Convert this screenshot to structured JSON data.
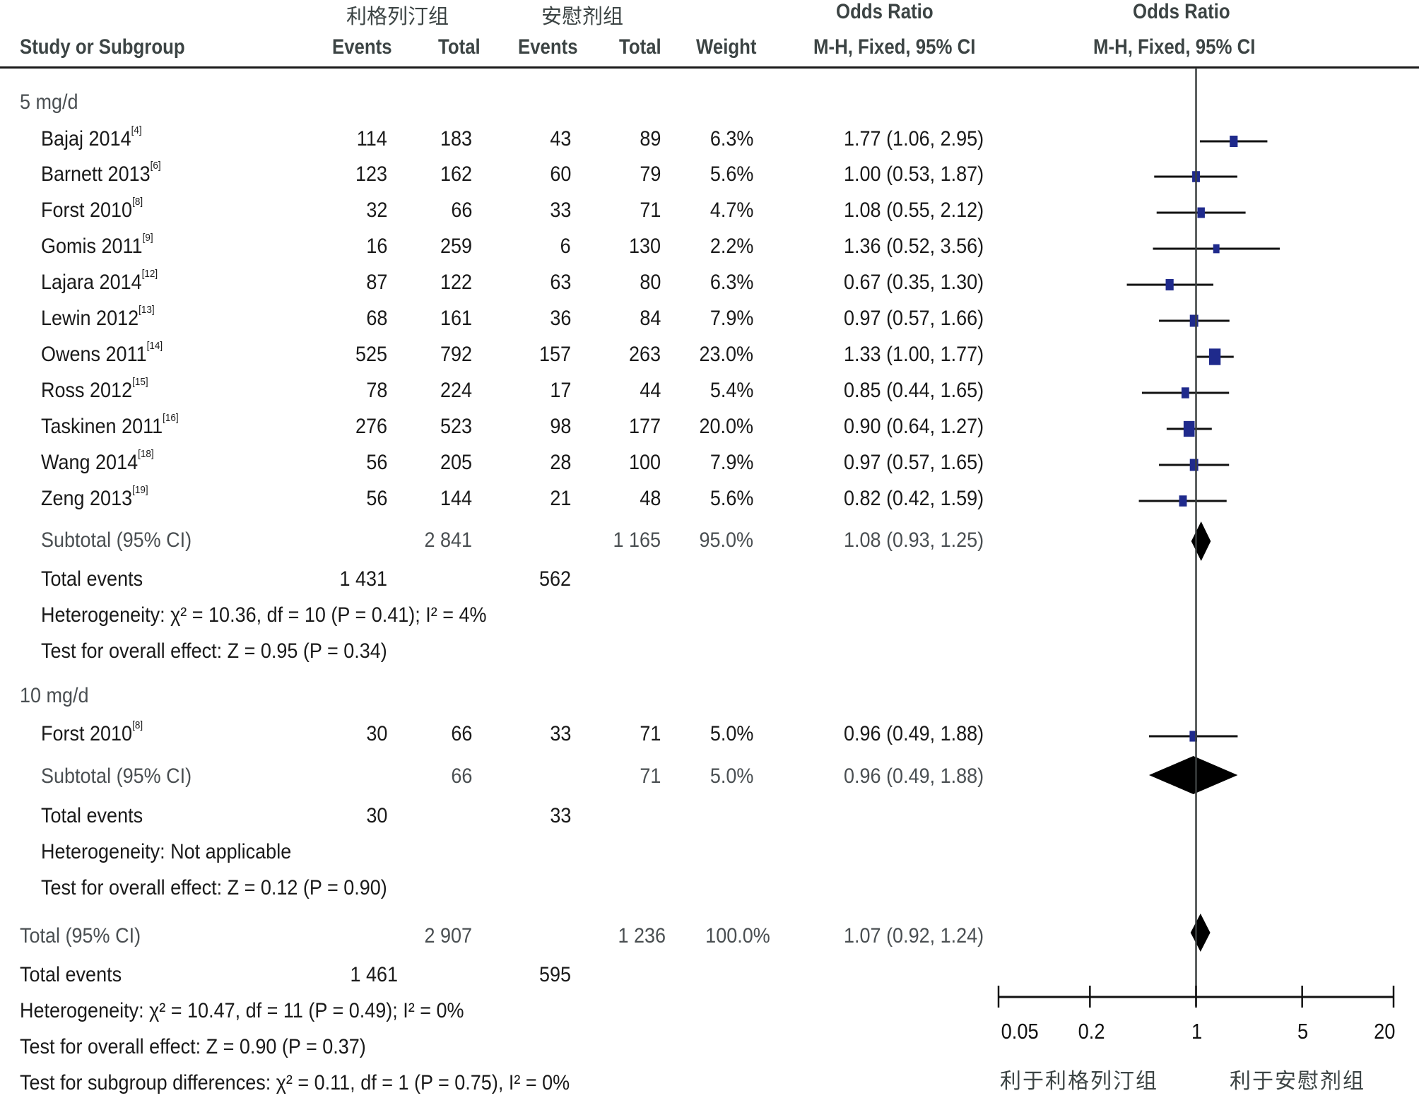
{
  "header": {
    "group1_label": "利格列汀组",
    "group2_label": "安慰剂组",
    "study_col": "Study or Subgroup",
    "events": "Events",
    "total": "Total",
    "weight": "Weight",
    "or_title": "Odds Ratio",
    "or_method": "M-H, Fixed, 95% CI"
  },
  "subgroups": [
    {
      "label": "5 mg/d",
      "studies": [
        {
          "name": "Bajaj 2014",
          "ref": "[4]",
          "e1": "114",
          "t1": "183",
          "e2": "43",
          "t2": "89",
          "weight": "6.3%",
          "ci": "1.77 (1.06, 2.95)",
          "or": 1.77,
          "lo": 1.06,
          "hi": 2.95,
          "w": 6.3
        },
        {
          "name": "Barnett 2013",
          "ref": "[6]",
          "e1": "123",
          "t1": "162",
          "e2": "60",
          "t2": "79",
          "weight": "5.6%",
          "ci": "1.00 (0.53, 1.87)",
          "or": 1.0,
          "lo": 0.53,
          "hi": 1.87,
          "w": 5.6
        },
        {
          "name": "Forst 2010",
          "ref": "[8]",
          "e1": "32",
          "t1": "66",
          "e2": "33",
          "t2": "71",
          "weight": "4.7%",
          "ci": "1.08 (0.55, 2.12)",
          "or": 1.08,
          "lo": 0.55,
          "hi": 2.12,
          "w": 4.7
        },
        {
          "name": "Gomis 2011",
          "ref": "[9]",
          "e1": "16",
          "t1": "259",
          "e2": "6",
          "t2": "130",
          "weight": "2.2%",
          "ci": "1.36 (0.52, 3.56)",
          "or": 1.36,
          "lo": 0.52,
          "hi": 3.56,
          "w": 2.2
        },
        {
          "name": "Lajara 2014",
          "ref": "[12]",
          "e1": "87",
          "t1": "122",
          "e2": "63",
          "t2": "80",
          "weight": "6.3%",
          "ci": "0.67 (0.35, 1.30)",
          "or": 0.67,
          "lo": 0.35,
          "hi": 1.3,
          "w": 6.3
        },
        {
          "name": "Lewin 2012",
          "ref": "[13]",
          "e1": "68",
          "t1": "161",
          "e2": "36",
          "t2": "84",
          "weight": "7.9%",
          "ci": "0.97 (0.57, 1.66)",
          "or": 0.97,
          "lo": 0.57,
          "hi": 1.66,
          "w": 7.9
        },
        {
          "name": "Owens 2011",
          "ref": "[14]",
          "e1": "525",
          "t1": "792",
          "e2": "157",
          "t2": "263",
          "weight": "23.0%",
          "ci": "1.33 (1.00, 1.77)",
          "or": 1.33,
          "lo": 1.0,
          "hi": 1.77,
          "w": 23.0
        },
        {
          "name": "Ross 2012",
          "ref": "[15]",
          "e1": "78",
          "t1": "224",
          "e2": "17",
          "t2": "44",
          "weight": "5.4%",
          "ci": "0.85 (0.44, 1.65)",
          "or": 0.85,
          "lo": 0.44,
          "hi": 1.65,
          "w": 5.4
        },
        {
          "name": "Taskinen 2011",
          "ref": "[16]",
          "e1": "276",
          "t1": "523",
          "e2": "98",
          "t2": "177",
          "weight": "20.0%",
          "ci": "0.90 (0.64, 1.27)",
          "or": 0.9,
          "lo": 0.64,
          "hi": 1.27,
          "w": 20.0
        },
        {
          "name": "Wang 2014",
          "ref": "[18]",
          "e1": "56",
          "t1": "205",
          "e2": "28",
          "t2": "100",
          "weight": "7.9%",
          "ci": "0.97 (0.57, 1.65)",
          "or": 0.97,
          "lo": 0.57,
          "hi": 1.65,
          "w": 7.9
        },
        {
          "name": "Zeng 2013",
          "ref": "[19]",
          "e1": "56",
          "t1": "144",
          "e2": "21",
          "t2": "48",
          "weight": "5.6%",
          "ci": "0.82 (0.42, 1.59)",
          "or": 0.82,
          "lo": 0.42,
          "hi": 1.59,
          "w": 5.6
        }
      ],
      "subtotal": {
        "label": "Subtotal (95% CI)",
        "t1": "2 841",
        "t2": "1 165",
        "weight": "95.0%",
        "ci": "1.08 (0.93, 1.25)",
        "or": 1.08,
        "lo": 0.93,
        "hi": 1.25
      },
      "total_events": {
        "label": "Total events",
        "e1": "1 431",
        "e2": "562"
      },
      "heterogeneity": "Heterogeneity: χ² = 10.36, df = 10 (P = 0.41); I² = 4%",
      "overall_effect": "Test for overall effect: Z = 0.95 (P = 0.34)"
    },
    {
      "label": "10 mg/d",
      "studies": [
        {
          "name": "Forst 2010",
          "ref": "[8]",
          "e1": "30",
          "t1": "66",
          "e2": "33",
          "t2": "71",
          "weight": "5.0%",
          "ci": "0.96 (0.49, 1.88)",
          "or": 0.96,
          "lo": 0.49,
          "hi": 1.88,
          "w": 5.0
        }
      ],
      "subtotal": {
        "label": "Subtotal (95% CI)",
        "t1": "66",
        "t2": "71",
        "weight": "5.0%",
        "ci": "0.96 (0.49, 1.88)",
        "or": 0.96,
        "lo": 0.49,
        "hi": 1.88
      },
      "total_events": {
        "label": "Total events",
        "e1": "30",
        "e2": "33"
      },
      "heterogeneity": "Heterogeneity: Not applicable",
      "overall_effect": "Test for overall effect: Z = 0.12 (P = 0.90)"
    }
  ],
  "overall": {
    "total": {
      "label": "Total (95% CI)",
      "t1": "2 907",
      "t2": "1 236",
      "weight": "100.0%",
      "ci": "1.07 (0.92, 1.24)",
      "or": 1.07,
      "lo": 0.92,
      "hi": 1.24
    },
    "total_events": {
      "label": "Total events",
      "e1": "1 461",
      "e2": "595"
    },
    "heterogeneity": "Heterogeneity: χ² = 10.47, df = 11 (P = 0.49); I² = 0%",
    "overall_effect": "Test for overall effect: Z = 0.90 (P = 0.37)",
    "subgroup_diff": "Test for subgroup differences: χ² = 0.11, df = 1 (P = 0.75), I² = 0%"
  },
  "axis": {
    "ticks": [
      "0.05",
      "0.2",
      "1",
      "5",
      "20"
    ],
    "favours_left": "利于利格列汀组",
    "favours_right": "利于安慰剂组"
  },
  "colors": {
    "square": "#1f2a8c",
    "diamond": "#000000",
    "text": "#1a1a1a",
    "header": "#3c4444"
  },
  "chart_data": {
    "type": "forest",
    "title": "Odds Ratio M-H, Fixed, 95% CI",
    "xscale": "log",
    "xlim": [
      0.05,
      20
    ],
    "xticks": [
      0.05,
      0.2,
      1,
      5,
      20
    ],
    "reference_line": 1,
    "xlabel_left": "利于利格列汀组",
    "xlabel_right": "利于安慰剂组",
    "series": [
      {
        "name": "Bajaj 2014",
        "or": 1.77,
        "lo": 1.06,
        "hi": 2.95,
        "weight": 6.3,
        "subgroup": "5 mg/d"
      },
      {
        "name": "Barnett 2013",
        "or": 1.0,
        "lo": 0.53,
        "hi": 1.87,
        "weight": 5.6,
        "subgroup": "5 mg/d"
      },
      {
        "name": "Forst 2010",
        "or": 1.08,
        "lo": 0.55,
        "hi": 2.12,
        "weight": 4.7,
        "subgroup": "5 mg/d"
      },
      {
        "name": "Gomis 2011",
        "or": 1.36,
        "lo": 0.52,
        "hi": 3.56,
        "weight": 2.2,
        "subgroup": "5 mg/d"
      },
      {
        "name": "Lajara 2014",
        "or": 0.67,
        "lo": 0.35,
        "hi": 1.3,
        "weight": 6.3,
        "subgroup": "5 mg/d"
      },
      {
        "name": "Lewin 2012",
        "or": 0.97,
        "lo": 0.57,
        "hi": 1.66,
        "weight": 7.9,
        "subgroup": "5 mg/d"
      },
      {
        "name": "Owens 2011",
        "or": 1.33,
        "lo": 1.0,
        "hi": 1.77,
        "weight": 23.0,
        "subgroup": "5 mg/d"
      },
      {
        "name": "Ross 2012",
        "or": 0.85,
        "lo": 0.44,
        "hi": 1.65,
        "weight": 5.4,
        "subgroup": "5 mg/d"
      },
      {
        "name": "Taskinen 2011",
        "or": 0.9,
        "lo": 0.64,
        "hi": 1.27,
        "weight": 20.0,
        "subgroup": "5 mg/d"
      },
      {
        "name": "Wang 2014",
        "or": 0.97,
        "lo": 0.57,
        "hi": 1.65,
        "weight": 7.9,
        "subgroup": "5 mg/d"
      },
      {
        "name": "Zeng 2013",
        "or": 0.82,
        "lo": 0.42,
        "hi": 1.59,
        "weight": 5.6,
        "subgroup": "5 mg/d"
      },
      {
        "name": "Subtotal 5 mg/d",
        "or": 1.08,
        "lo": 0.93,
        "hi": 1.25,
        "weight": 95.0,
        "summary": true
      },
      {
        "name": "Forst 2010",
        "or": 0.96,
        "lo": 0.49,
        "hi": 1.88,
        "weight": 5.0,
        "subgroup": "10 mg/d"
      },
      {
        "name": "Subtotal 10 mg/d",
        "or": 0.96,
        "lo": 0.49,
        "hi": 1.88,
        "weight": 5.0,
        "summary": true
      },
      {
        "name": "Total",
        "or": 1.07,
        "lo": 0.92,
        "hi": 1.24,
        "weight": 100.0,
        "summary": true
      }
    ]
  }
}
